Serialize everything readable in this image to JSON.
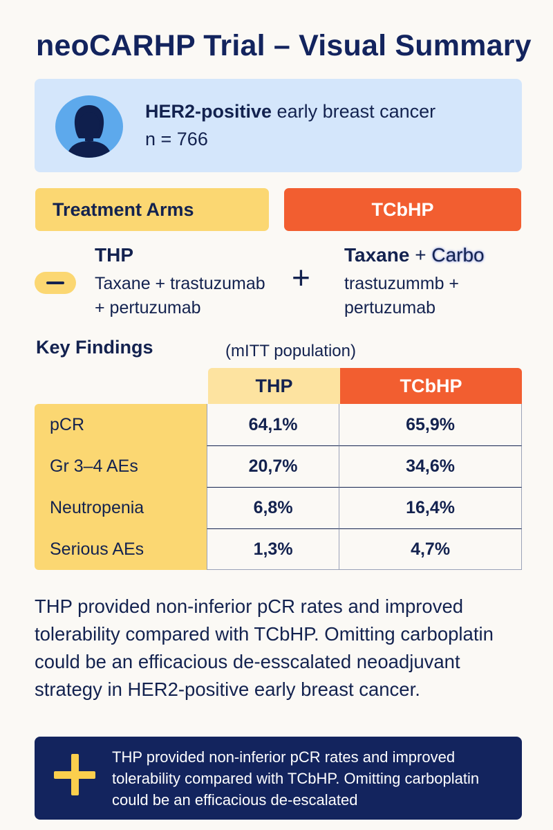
{
  "title": "neoCARHP Trial – Visual Summary",
  "population": {
    "bold": "HER2-positive",
    "rest": " early breast cancer",
    "n": "n = 766",
    "icon": "person-icon"
  },
  "arms": {
    "label": "Treatment Arms",
    "tcbhp_header": "TCbHP",
    "thp": {
      "name": "THP",
      "line1": "Taxane + trastuzumab",
      "line2": "+ pertuzumab"
    },
    "tcbhp": {
      "name": "Taxane",
      "plus": " + ",
      "carbo": "Carbo",
      "line1": "trastuzummb +",
      "line2": "pertuzumab"
    },
    "minus_icon": "minus-icon",
    "plus_icon": "plus-icon"
  },
  "findings": {
    "title": "Key Findings",
    "subtitle": "(mITT population)",
    "col_thp": "THP",
    "col_tcbhp": "TCbHP",
    "rows": [
      {
        "label": "pCR",
        "thp": "64,1%",
        "tcbhp": "65,9%"
      },
      {
        "label": "Gr 3–4 AEs",
        "thp": "20,7%",
        "tcbhp": "34,6%"
      },
      {
        "label": "Neutropenia",
        "thp": "6,8%",
        "tcbhp": "16,4%"
      },
      {
        "label": "Serious AEs",
        "thp": "1,3%",
        "tcbhp": "4,7%"
      }
    ]
  },
  "conclusion": "THP provided non-inferior pCR rates and improved tolerability compared with TCbHP. Omitting carboplatin could be an efficacious de-esscalated neoadjuvant strategy in HER2-positive early breast cancer.",
  "callout": {
    "text": "THP provided non-inferior pCR rates and improved tolerability compared with TCbHP. Omitting carboplatin could be an efficacious de-escalated",
    "icon": "plus-icon"
  },
  "colors": {
    "navy": "#13245e",
    "yellow": "#fbd772",
    "orange": "#f25e30",
    "light_blue": "#d4e6fb"
  }
}
